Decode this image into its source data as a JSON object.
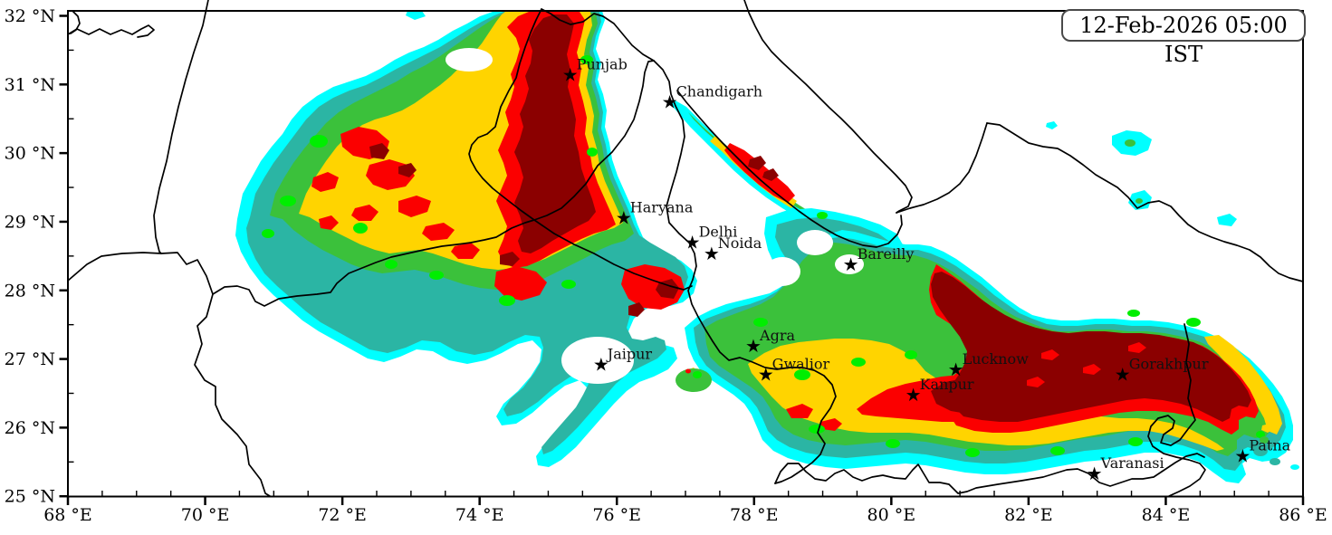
{
  "header": {
    "timestamp": "12-Feb-2026 05:00 IST"
  },
  "axes": {
    "x_ticks": [
      {
        "lon": 68,
        "label": "68 °E"
      },
      {
        "lon": 70,
        "label": "70 °E"
      },
      {
        "lon": 72,
        "label": "72 °E"
      },
      {
        "lon": 74,
        "label": "74 °E"
      },
      {
        "lon": 76,
        "label": "76 °E"
      },
      {
        "lon": 78,
        "label": "78 °E"
      },
      {
        "lon": 80,
        "label": "80 °E"
      },
      {
        "lon": 82,
        "label": "82 °E"
      },
      {
        "lon": 84,
        "label": "84 °E"
      },
      {
        "lon": 86,
        "label": "86 °E"
      }
    ],
    "y_ticks": [
      {
        "lat": 25,
        "label": "25 °N"
      },
      {
        "lat": 26,
        "label": "26 °N"
      },
      {
        "lat": 27,
        "label": "27 °N"
      },
      {
        "lat": 28,
        "label": "28 °N"
      },
      {
        "lat": 29,
        "label": "29 °N"
      },
      {
        "lat": 30,
        "label": "30 °N"
      },
      {
        "lat": 31,
        "label": "31 °N"
      },
      {
        "lat": 32,
        "label": "32 °N"
      }
    ],
    "minor_step_deg": 0.5,
    "extent": {
      "lon_min": 68,
      "lon_max": 86,
      "lat_min": 25,
      "lat_max": 32.1
    }
  },
  "cities": [
    {
      "name": "Punjab",
      "lon": 75.32,
      "lat": 31.14
    },
    {
      "name": "Chandigarh",
      "lon": 76.77,
      "lat": 30.75
    },
    {
      "name": "Haryana",
      "lon": 76.1,
      "lat": 29.06
    },
    {
      "name": "Delhi",
      "lon": 77.1,
      "lat": 28.7
    },
    {
      "name": "Noida",
      "lon": 77.38,
      "lat": 28.54
    },
    {
      "name": "Bareilly",
      "lon": 79.41,
      "lat": 28.38
    },
    {
      "name": "Agra",
      "lon": 77.99,
      "lat": 27.19
    },
    {
      "name": "Jaipur",
      "lon": 75.77,
      "lat": 26.92
    },
    {
      "name": "Gwalior",
      "lon": 78.17,
      "lat": 26.78
    },
    {
      "name": "Lucknow",
      "lon": 80.94,
      "lat": 26.85
    },
    {
      "name": "Kanpur",
      "lon": 80.32,
      "lat": 26.48
    },
    {
      "name": "Gorakhpur",
      "lon": 83.37,
      "lat": 26.78
    },
    {
      "name": "Patna",
      "lon": 85.12,
      "lat": 25.59
    },
    {
      "name": "Varanasi",
      "lon": 82.96,
      "lat": 25.33
    }
  ],
  "markers": {
    "star_glyph": "★"
  },
  "palette": {
    "l1_cyan": "#00FFFF",
    "l2_teal": "#2BB5A4",
    "l3_green": "#3BC13B",
    "l3b_bright_green": "#00EE00",
    "l4_yellow": "#FFD400",
    "l5_red": "#FB0000",
    "l6_darkred": "#8B0000",
    "background": "#FFFFFF",
    "border_line": "#000000"
  }
}
